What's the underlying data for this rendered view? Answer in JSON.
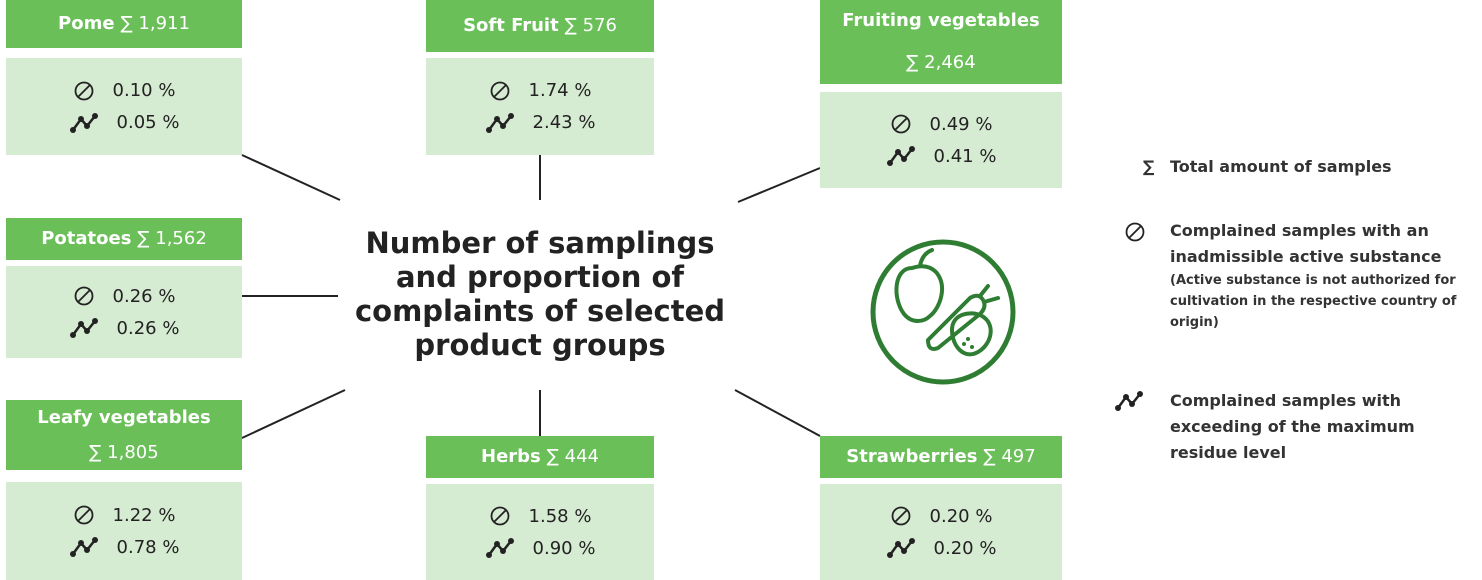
{
  "title": "Number of samplings and proportion of complaints of selected product groups",
  "groups": [
    {
      "name": "Pome",
      "total": "∑ 1,911",
      "inadmissible": "0.10 %",
      "exceeding": "0.05 %"
    },
    {
      "name": "Soft Fruit",
      "total": "∑ 576",
      "inadmissible": "1.74 %",
      "exceeding": "2.43 %"
    },
    {
      "name": "Fruiting vegetables",
      "total": "∑ 2,464",
      "inadmissible": "0.49 %",
      "exceeding": "0.41 %"
    },
    {
      "name": "Potatoes",
      "total": "∑ 1,562",
      "inadmissible": "0.26 %",
      "exceeding": "0.26 %"
    },
    {
      "name": "Leafy vegetables",
      "total": "∑ 1,805",
      "inadmissible": "1.22 %",
      "exceeding": "0.78 %"
    },
    {
      "name": "Herbs",
      "total": "∑ 444",
      "inadmissible": "1.58 %",
      "exceeding": "0.90 %"
    },
    {
      "name": "Strawberries",
      "total": "∑ 497",
      "inadmissible": "0.20 %",
      "exceeding": "0.20 %"
    }
  ],
  "legend": {
    "sum_symbol": "∑",
    "total": "Total amount of samples",
    "inadmissible": "Complained samples with an inadmissible active substance",
    "inadmissible_note": "(Active substance is not authorized for cultivation in the respective country of origin)",
    "exceeding": "Complained samples with exceeding of the maximum residue level"
  }
}
